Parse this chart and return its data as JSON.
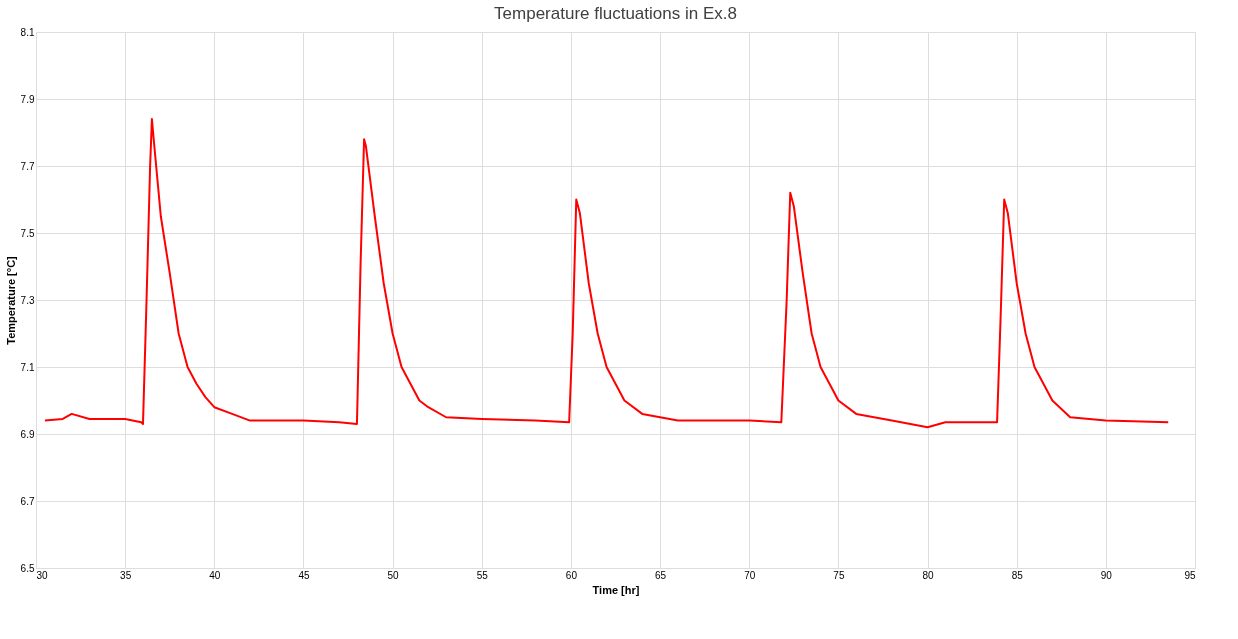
{
  "chart_data": {
    "type": "line",
    "title": "Temperature fluctuations in Ex.8",
    "xlabel": "Time [hr]",
    "ylabel": "Temperature [°C]",
    "series": [
      {
        "color": "#ff0000",
        "x": [
          30.5,
          31.5,
          32,
          33,
          35,
          35.9,
          36.0,
          36.2,
          36.4,
          36.5,
          36.6,
          37.0,
          37.5,
          38.0,
          38.5,
          39.0,
          39.5,
          40.0,
          41,
          42,
          45,
          47,
          48.0,
          48.2,
          48.4,
          48.5,
          49,
          49.5,
          50,
          50.5,
          51,
          51.5,
          52,
          53,
          55,
          58,
          59.9,
          60.1,
          60.3,
          60.5,
          61,
          61.5,
          62,
          62.5,
          63,
          64,
          66,
          70,
          71.8,
          72.1,
          72.3,
          72.5,
          73,
          73.5,
          74,
          74.5,
          75,
          76,
          78,
          80,
          81,
          83.9,
          84.1,
          84.3,
          84.5,
          85,
          85.5,
          86,
          86.5,
          87,
          88,
          90,
          93.5
        ],
        "values": [
          6.94,
          6.945,
          6.96,
          6.945,
          6.945,
          6.935,
          6.93,
          7.3,
          7.7,
          7.84,
          7.78,
          7.55,
          7.38,
          7.2,
          7.1,
          7.05,
          7.01,
          6.98,
          6.96,
          6.94,
          6.94,
          6.935,
          6.93,
          7.4,
          7.78,
          7.76,
          7.55,
          7.35,
          7.2,
          7.1,
          7.05,
          7.0,
          6.98,
          6.95,
          6.945,
          6.94,
          6.935,
          7.2,
          7.6,
          7.56,
          7.35,
          7.2,
          7.1,
          7.05,
          7.0,
          6.96,
          6.94,
          6.94,
          6.935,
          7.3,
          7.62,
          7.58,
          7.38,
          7.2,
          7.1,
          7.05,
          7.0,
          6.96,
          6.94,
          6.92,
          6.935,
          6.935,
          7.25,
          7.6,
          7.56,
          7.35,
          7.2,
          7.1,
          7.05,
          7.0,
          6.95,
          6.94,
          6.935
        ]
      }
    ],
    "xlim": [
      30,
      95
    ],
    "xticks": [
      30,
      35,
      40,
      45,
      50,
      55,
      60,
      65,
      70,
      75,
      80,
      85,
      90,
      95
    ],
    "ylim": [
      6.5,
      8.1
    ],
    "yticks": [
      6.5,
      6.7,
      6.9,
      7.1,
      7.3,
      7.5,
      7.7,
      7.9,
      8.1
    ],
    "grid": true,
    "marker": "none",
    "line_style": "solid"
  }
}
